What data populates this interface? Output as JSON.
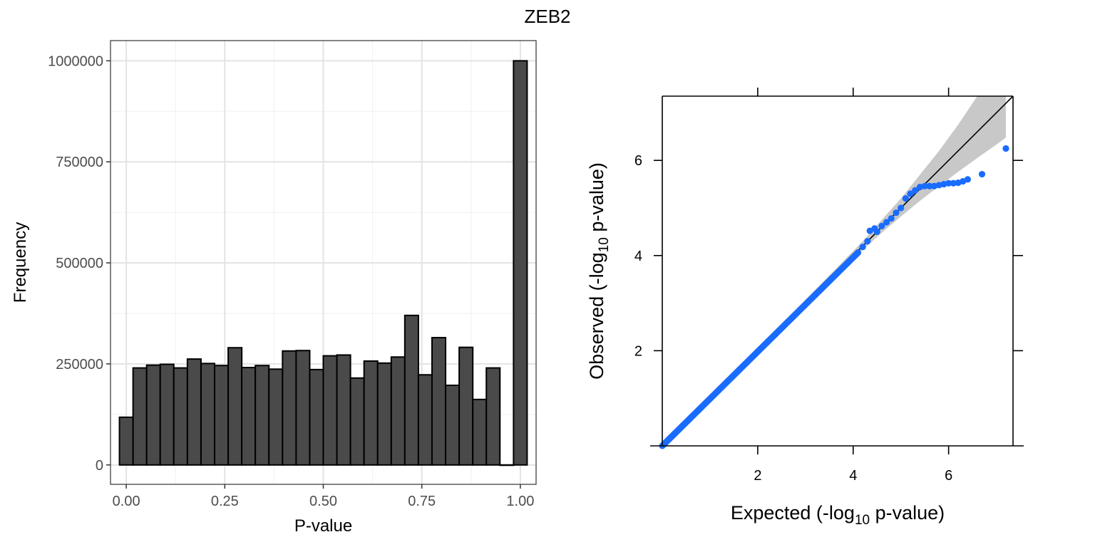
{
  "figure": {
    "title": "ZEB2"
  },
  "chart_data": [
    {
      "type": "bar",
      "subtype": "histogram",
      "xlabel": "P-value",
      "ylabel": "Frequency",
      "xlim": [
        -0.04,
        1.04
      ],
      "ylim": [
        -48000,
        1050000
      ],
      "bin_width": 0.0345,
      "bin_centers": [
        0.0,
        0.0345,
        0.069,
        0.1034,
        0.1379,
        0.1724,
        0.2069,
        0.2414,
        0.2759,
        0.3103,
        0.3448,
        0.3793,
        0.4138,
        0.4483,
        0.4828,
        0.5172,
        0.5517,
        0.5862,
        0.6207,
        0.6552,
        0.6897,
        0.7241,
        0.7586,
        0.7931,
        0.8276,
        0.8621,
        0.8966,
        0.931,
        0.9655,
        1.0
      ],
      "values": [
        118000,
        240000,
        247000,
        249000,
        240000,
        262000,
        251000,
        246000,
        290000,
        241000,
        246000,
        237000,
        282000,
        283000,
        236000,
        270000,
        272000,
        215000,
        257000,
        252000,
        267000,
        370000,
        223000,
        315000,
        197000,
        291000,
        162000,
        240000,
        0,
        1000000
      ],
      "xticks": [
        0.0,
        0.25,
        0.5,
        0.75,
        1.0
      ],
      "xtick_labels": [
        "0.00",
        "0.25",
        "0.50",
        "0.75",
        "1.00"
      ],
      "yticks": [
        0,
        250000,
        500000,
        750000,
        1000000
      ],
      "ytick_labels": [
        "0",
        "250000",
        "500000",
        "750000",
        "1000000"
      ],
      "grid": true,
      "colors": {
        "bar_fill": "#4a4a4a",
        "bar_edge": "#000000",
        "grid_major": "#e3e3e3",
        "grid_minor": "#f0f0f0",
        "panel_border": "#333333"
      }
    },
    {
      "type": "scatter",
      "subtype": "qq-plot",
      "xlabel_main": "Expected (-log",
      "xlabel_sub": "10",
      "xlabel_tail": " p-value)",
      "ylabel_main": "Observed (-log",
      "ylabel_sub": "10",
      "ylabel_tail": " p-value)",
      "xlim": [
        0,
        7.35
      ],
      "ylim": [
        0,
        7.35
      ],
      "xticks": [
        2,
        4,
        6
      ],
      "xtick_labels": [
        "2",
        "4",
        "6"
      ],
      "yticks": [
        2,
        4,
        6
      ],
      "ytick_labels": [
        "2",
        "4",
        "6"
      ],
      "reference_line": {
        "x": [
          0,
          7.35
        ],
        "y": [
          0,
          7.35
        ]
      },
      "confidence_band": {
        "expected": [
          0,
          4.2,
          4.6,
          5.0,
          5.4,
          5.8,
          6.2,
          6.6,
          7.0,
          7.2
        ],
        "upper": [
          0,
          4.3,
          4.75,
          5.2,
          5.7,
          6.2,
          6.75,
          7.35,
          7.35,
          7.35
        ],
        "lower": [
          0,
          4.12,
          4.48,
          4.82,
          5.15,
          5.46,
          5.76,
          6.05,
          6.33,
          6.48
        ]
      },
      "tail_points": {
        "x": [
          4.1,
          4.2,
          4.3,
          4.35,
          4.45,
          4.5,
          4.6,
          4.7,
          4.8,
          4.9,
          5.0,
          5.1,
          5.2,
          5.3,
          5.4,
          5.5,
          5.6,
          5.7,
          5.8,
          5.9,
          6.0,
          6.1,
          6.2,
          6.3,
          6.4,
          6.7,
          7.2
        ],
        "y": [
          4.06,
          4.18,
          4.3,
          4.52,
          4.57,
          4.5,
          4.62,
          4.7,
          4.78,
          4.9,
          5.0,
          5.2,
          5.3,
          5.37,
          5.44,
          5.46,
          5.46,
          5.46,
          5.48,
          5.5,
          5.52,
          5.52,
          5.53,
          5.56,
          5.6,
          5.71,
          6.25
        ]
      },
      "main_trend": {
        "x": [
          0.0,
          4.1
        ],
        "y": [
          0.0,
          4.06
        ]
      },
      "colors": {
        "points": "#1a6cff",
        "band": "#c8c8c8",
        "line": "#000000",
        "frame": "#000000"
      }
    }
  ]
}
